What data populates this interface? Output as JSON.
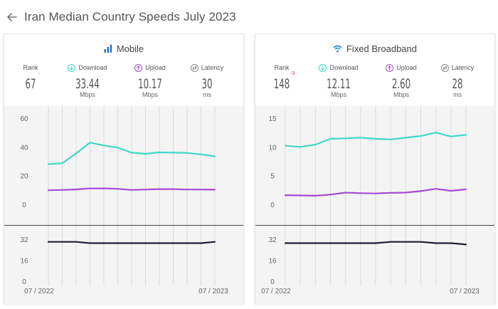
{
  "page": {
    "title": "Iran Median Country Speeds",
    "date": "July 2023"
  },
  "icons": {
    "back": "arrow-left-icon",
    "mobile": "signal-bars-icon",
    "fixed": "wifi-icon",
    "download": "arrow-down-circle-icon",
    "upload": "arrow-up-circle-icon",
    "latency": "latency-circle-icon"
  },
  "colors": {
    "download": "#3fd8c8",
    "upload": "#a64ad8",
    "latency": "#1d1f33",
    "mobile_icon": "#1f6fc5",
    "fixed_icon": "#1a8fd9",
    "rank_change": "#e8334a"
  },
  "cards": [
    {
      "title": "Mobile",
      "metrics": {
        "rank": {
          "label": "Rank",
          "value": "67",
          "change": "-"
        },
        "download": {
          "label": "Download",
          "value": "33.44",
          "unit": "Mbps"
        },
        "upload": {
          "label": "Upload",
          "value": "10.17",
          "unit": "Mbps"
        },
        "latency": {
          "label": "Latency",
          "value": "30",
          "unit": "ms"
        }
      }
    },
    {
      "title": "Fixed Broadband",
      "metrics": {
        "rank": {
          "label": "Rank",
          "value": "148",
          "change": "-3"
        },
        "download": {
          "label": "Download",
          "value": "12.11",
          "unit": "Mbps"
        },
        "upload": {
          "label": "Upload",
          "value": "2.60",
          "unit": "Mbps"
        },
        "latency": {
          "label": "Latency",
          "value": "28",
          "unit": "ms"
        }
      }
    }
  ],
  "chart_data": [
    {
      "type": "line",
      "panel": "Mobile speeds",
      "x": [
        "07 / 2022",
        "08 / 2022",
        "09 / 2022",
        "10 / 2022",
        "11 / 2022",
        "12 / 2022",
        "01 / 2023",
        "02 / 2023",
        "03 / 2023",
        "04 / 2023",
        "05 / 2023",
        "06 / 2023",
        "07 / 2023"
      ],
      "x_tick_labels": [
        "07 / 2022",
        "07 / 2023"
      ],
      "yticks": [
        0,
        20,
        40,
        60
      ],
      "ylim": [
        0,
        60
      ],
      "grid": "vertical",
      "series": [
        {
          "key": "download",
          "values": [
            28,
            28.6,
            35.5,
            43,
            41,
            39.5,
            36,
            35.2,
            36.2,
            36,
            35.8,
            34.8,
            33.4
          ]
        },
        {
          "key": "upload",
          "values": [
            9.8,
            10,
            10.4,
            11.1,
            11.1,
            10.8,
            10,
            10.3,
            10.6,
            10.6,
            10.3,
            10.3,
            10.2
          ]
        }
      ]
    },
    {
      "type": "line",
      "panel": "Mobile latency",
      "x": [
        "07 / 2022",
        "08 / 2022",
        "09 / 2022",
        "10 / 2022",
        "11 / 2022",
        "12 / 2022",
        "01 / 2023",
        "02 / 2023",
        "03 / 2023",
        "04 / 2023",
        "05 / 2023",
        "06 / 2023",
        "07 / 2023"
      ],
      "x_tick_labels": [
        "07 / 2022",
        "07 / 2023"
      ],
      "yticks": [
        0,
        16,
        32
      ],
      "ylim": [
        0,
        38
      ],
      "grid": "vertical",
      "series": [
        {
          "key": "latency",
          "values": [
            30,
            30,
            30,
            29,
            29,
            29,
            29,
            29,
            29,
            29,
            29,
            29,
            30
          ]
        }
      ]
    },
    {
      "type": "line",
      "panel": "Fixed Broadband speeds",
      "x": [
        "07 / 2022",
        "08 / 2022",
        "09 / 2022",
        "10 / 2022",
        "11 / 2022",
        "12 / 2022",
        "01 / 2023",
        "02 / 2023",
        "03 / 2023",
        "04 / 2023",
        "05 / 2023",
        "06 / 2023",
        "07 / 2023"
      ],
      "x_tick_labels": [
        "07 / 2022",
        "07 / 2023"
      ],
      "yticks": [
        0,
        5,
        10,
        15
      ],
      "ylim": [
        0,
        15
      ],
      "grid": "vertical",
      "series": [
        {
          "key": "download",
          "values": [
            10.2,
            10,
            10.4,
            11.4,
            11.5,
            11.6,
            11.4,
            11.3,
            11.6,
            11.9,
            12.5,
            11.8,
            12.1
          ]
        },
        {
          "key": "upload",
          "values": [
            1.6,
            1.55,
            1.5,
            1.7,
            2.05,
            1.95,
            1.9,
            2.0,
            2.05,
            2.3,
            2.7,
            2.35,
            2.6
          ]
        }
      ]
    },
    {
      "type": "line",
      "panel": "Fixed Broadband latency",
      "x": [
        "07 / 2022",
        "08 / 2022",
        "09 / 2022",
        "10 / 2022",
        "11 / 2022",
        "12 / 2022",
        "01 / 2023",
        "02 / 2023",
        "03 / 2023",
        "04 / 2023",
        "05 / 2023",
        "06 / 2023",
        "07 / 2023"
      ],
      "x_tick_labels": [
        "07 / 2022",
        "07 / 2023"
      ],
      "yticks": [
        0,
        16,
        32
      ],
      "ylim": [
        0,
        38
      ],
      "grid": "vertical",
      "series": [
        {
          "key": "latency",
          "values": [
            29,
            29,
            29,
            29,
            29,
            29,
            29,
            30,
            30,
            30,
            29,
            29,
            28
          ]
        }
      ]
    }
  ]
}
